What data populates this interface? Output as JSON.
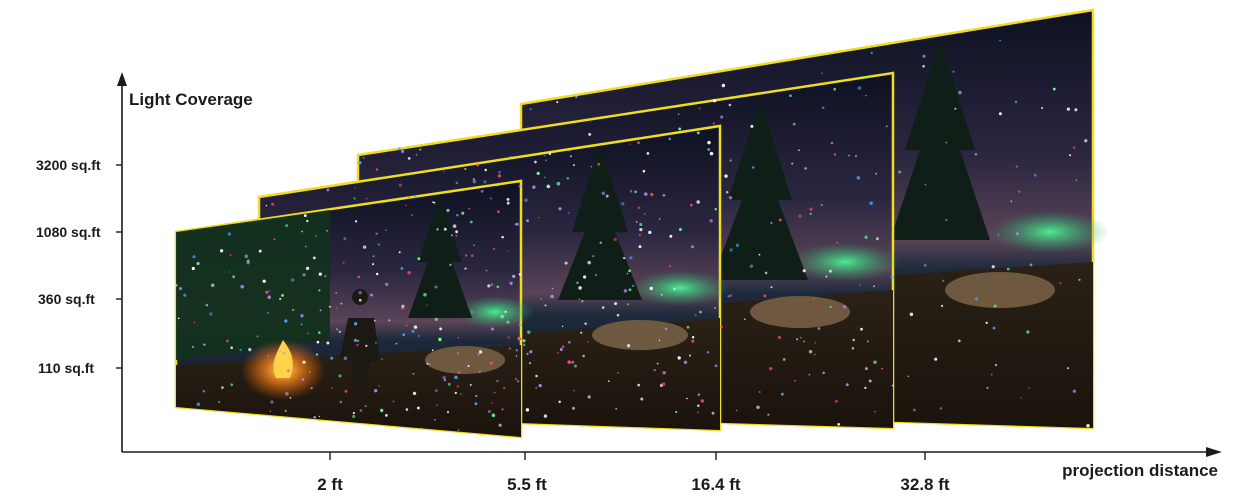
{
  "diagram": {
    "y_axis": {
      "title": "Light Coverage",
      "ticks": [
        "3200 sq.ft",
        "1080 sq.ft",
        "360 sq.ft",
        "110 sq.ft"
      ]
    },
    "x_axis": {
      "title": "projection distance",
      "ticks": [
        "2 ft",
        "5.5 ft",
        "16.4 ft",
        "32.8 ft"
      ]
    },
    "panels": [
      {
        "scene": "night-camp-projection",
        "coverage": "110 sq.ft",
        "distance": "2 ft"
      },
      {
        "scene": "night-camp-projection",
        "coverage": "360 sq.ft",
        "distance": "5.5 ft"
      },
      {
        "scene": "night-camp-projection",
        "coverage": "1080 sq.ft",
        "distance": "16.4 ft"
      },
      {
        "scene": "night-camp-projection",
        "coverage": "3200 sq.ft",
        "distance": "32.8 ft"
      }
    ],
    "colors": {
      "frame": "#f0dc20",
      "axis": "#1b1b1b",
      "sky": "#3a2f4a",
      "night": "#0b0f1c",
      "ground": "#3a2a1c",
      "foliage": "#0f2416",
      "glow": "#27d36a",
      "fire": "#ffb020"
    }
  }
}
